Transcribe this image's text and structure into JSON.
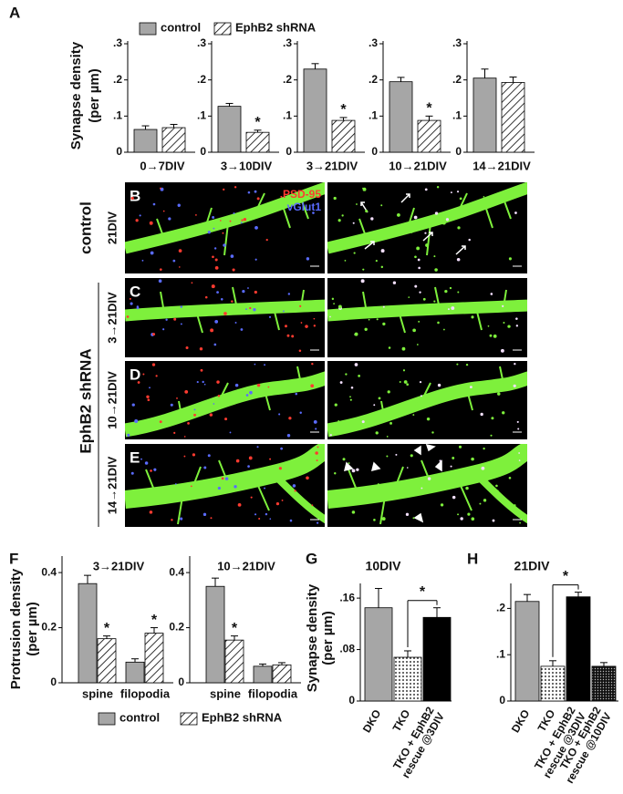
{
  "chart_data": [
    {
      "type": "bar",
      "label": "A",
      "ylabel": [
        "Synapse density",
        "(per µm)"
      ],
      "ylim": [
        0,
        0.3
      ],
      "yticks": [
        {
          "value": 0,
          "label": "0"
        },
        {
          "value": 0.1,
          "label": ".1"
        },
        {
          "value": 0.2,
          "label": ".2"
        },
        {
          "value": 0.3,
          "label": ".3"
        }
      ],
      "legend": [
        {
          "name": "control",
          "color": "#a6a6a6",
          "pattern": null
        },
        {
          "name": "EphB2 shRNA",
          "color": "#ffffff",
          "pattern": "hatch"
        }
      ],
      "panels": [
        {
          "category": "0→7DIV",
          "values": [
            0.063,
            0.068
          ],
          "errors": [
            0.01,
            0.009
          ],
          "annotations": [
            null,
            null
          ]
        },
        {
          "category": "3→10DIV",
          "values": [
            0.127,
            0.055
          ],
          "errors": [
            0.008,
            0.006
          ],
          "annotations": [
            null,
            "*"
          ]
        },
        {
          "category": "3→21DIV",
          "values": [
            0.23,
            0.088
          ],
          "errors": [
            0.015,
            0.008
          ],
          "annotations": [
            null,
            "*"
          ]
        },
        {
          "category": "10→21DIV",
          "values": [
            0.195,
            0.088
          ],
          "errors": [
            0.012,
            0.012
          ],
          "annotations": [
            null,
            "*"
          ]
        },
        {
          "category": "14→21DIV",
          "values": [
            0.205,
            0.193
          ],
          "errors": [
            0.025,
            0.015
          ],
          "annotations": [
            null,
            null
          ]
        }
      ]
    },
    {
      "type": "bar",
      "label": "F",
      "ylabel": [
        "Protrusion density",
        "(per µm)"
      ],
      "ylim": [
        0,
        0.45
      ],
      "yticks": [
        0,
        0.2,
        0.4
      ],
      "legend": [
        {
          "name": "control",
          "color": "#a6a6a6",
          "pattern": null
        },
        {
          "name": "EphB2 shRNA",
          "color": "#ffffff",
          "pattern": "hatch"
        }
      ],
      "panels": [
        {
          "title": "3→21DIV",
          "categories": [
            "spine",
            "filopodia"
          ],
          "series": [
            {
              "values": [
                0.36,
                0.075
              ],
              "errors": [
                0.03,
                0.012
              ],
              "annotations": [
                null,
                null
              ]
            },
            {
              "values": [
                0.16,
                0.18
              ],
              "errors": [
                0.01,
                0.02
              ],
              "annotations": [
                "*",
                "*"
              ]
            }
          ]
        },
        {
          "title": "10→21DIV",
          "categories": [
            "spine",
            "filopodia"
          ],
          "series": [
            {
              "values": [
                0.35,
                0.06
              ],
              "errors": [
                0.03,
                0.008
              ],
              "annotations": [
                null,
                null
              ]
            },
            {
              "values": [
                0.155,
                0.065
              ],
              "errors": [
                0.015,
                0.008
              ],
              "annotations": [
                "*",
                null
              ]
            }
          ]
        }
      ]
    },
    {
      "type": "bar",
      "label": "G",
      "title": "10DIV",
      "ylabel": [
        "Synapse density",
        "(per µm)"
      ],
      "ylim": [
        0,
        0.18
      ],
      "yticks": [
        {
          "value": 0,
          "label": "0"
        },
        {
          "value": 0.08,
          "label": ".08"
        },
        {
          "value": 0.16,
          "label": ".16"
        }
      ],
      "categories": [
        "DKO",
        "TKO",
        [
          "TKO + EphB2",
          "rescue @3DIV"
        ]
      ],
      "values": [
        0.145,
        0.068,
        0.13
      ],
      "errors": [
        0.03,
        0.01,
        0.015
      ],
      "colors": [
        "#a6a6a6",
        "#ffffff",
        "#000000"
      ],
      "patterns": [
        null,
        "dots",
        null
      ],
      "comparison": {
        "text": "*",
        "between": [
          1,
          2
        ]
      }
    },
    {
      "type": "bar",
      "label": "H",
      "title": "21DIV",
      "ylim": [
        0,
        0.25
      ],
      "yticks": [
        {
          "value": 0,
          "label": "0"
        },
        {
          "value": 0.1,
          "label": ".1"
        },
        {
          "value": 0.2,
          "label": ".2"
        }
      ],
      "categories": [
        "DKO",
        "TKO",
        [
          "TKO + EphB2",
          "rescue @3DIV"
        ],
        [
          "TKO + EphB2",
          "rescue @10DIV"
        ]
      ],
      "values": [
        0.215,
        0.075,
        0.225,
        0.075
      ],
      "errors": [
        0.015,
        0.012,
        0.01,
        0.008
      ],
      "colors": [
        "#a6a6a6",
        "#ffffff",
        "#000000",
        "#000000"
      ],
      "patterns": [
        null,
        "dots",
        null,
        "dense-dots"
      ],
      "comparison": {
        "text": "*",
        "between": [
          1,
          2
        ]
      }
    }
  ],
  "images": {
    "channels": [
      {
        "name": "PSD-95",
        "color": "#ff3b30"
      },
      {
        "name": "vGlut1",
        "color": "#5a6bff"
      }
    ],
    "groups": [
      {
        "name": "control",
        "rows": [
          {
            "label": "B",
            "condition": "21DIV"
          }
        ]
      },
      {
        "name": "EphB2 shRNA",
        "rows": [
          {
            "label": "C",
            "condition": "3→21DIV"
          },
          {
            "label": "D",
            "condition": "10→21DIV"
          },
          {
            "label": "E",
            "condition": "14→21DIV"
          }
        ]
      }
    ]
  }
}
